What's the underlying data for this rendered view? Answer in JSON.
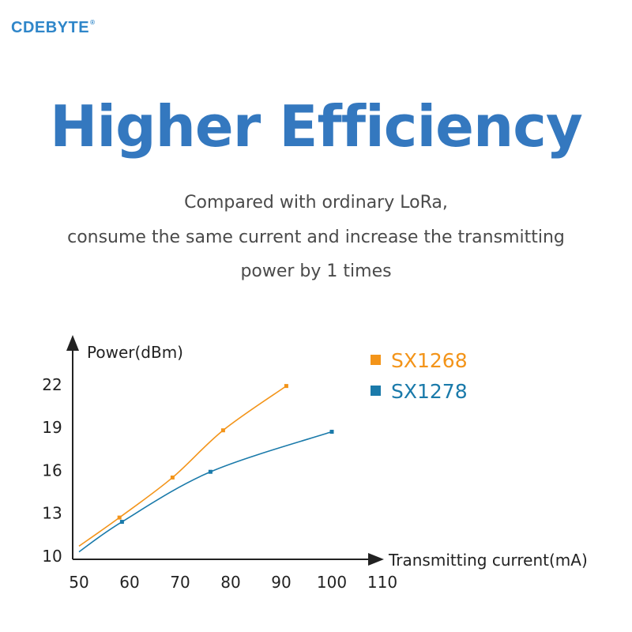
{
  "brand": {
    "name": "CDEBYTE",
    "mark": "®"
  },
  "headline": "Higher Efficiency",
  "subtitle": [
    "Compared with ordinary LoRa,",
    "consume the same current and increase the transmitting",
    "power by 1 times"
  ],
  "colors": {
    "brand": "#2f86c9",
    "headline": "#3478bf",
    "sx1268": "#f39419",
    "sx1278": "#1a7aaa",
    "axis": "#222222"
  },
  "chart_data": {
    "type": "line",
    "xlabel": "Transmitting current(mA)",
    "ylabel": "Power(dBm)",
    "xlim": [
      50,
      110
    ],
    "ylim": [
      10,
      24
    ],
    "x_ticks": [
      50,
      60,
      70,
      80,
      90,
      100,
      110
    ],
    "y_ticks": [
      10,
      13,
      16,
      19,
      22
    ],
    "legend_position": "top-right",
    "grid": false,
    "series": [
      {
        "name": "SX1268",
        "color": "#f39419",
        "x": [
          50,
          58,
          68.5,
          78.5,
          91
        ],
        "y": [
          10.7,
          12.7,
          15.5,
          18.8,
          21.9
        ],
        "markers": [
          false,
          true,
          true,
          true,
          true
        ]
      },
      {
        "name": "SX1278",
        "color": "#1a7aaa",
        "x": [
          50,
          58.5,
          76,
          100
        ],
        "y": [
          10.3,
          12.4,
          15.9,
          18.7
        ],
        "markers": [
          false,
          true,
          true,
          true
        ]
      }
    ]
  }
}
